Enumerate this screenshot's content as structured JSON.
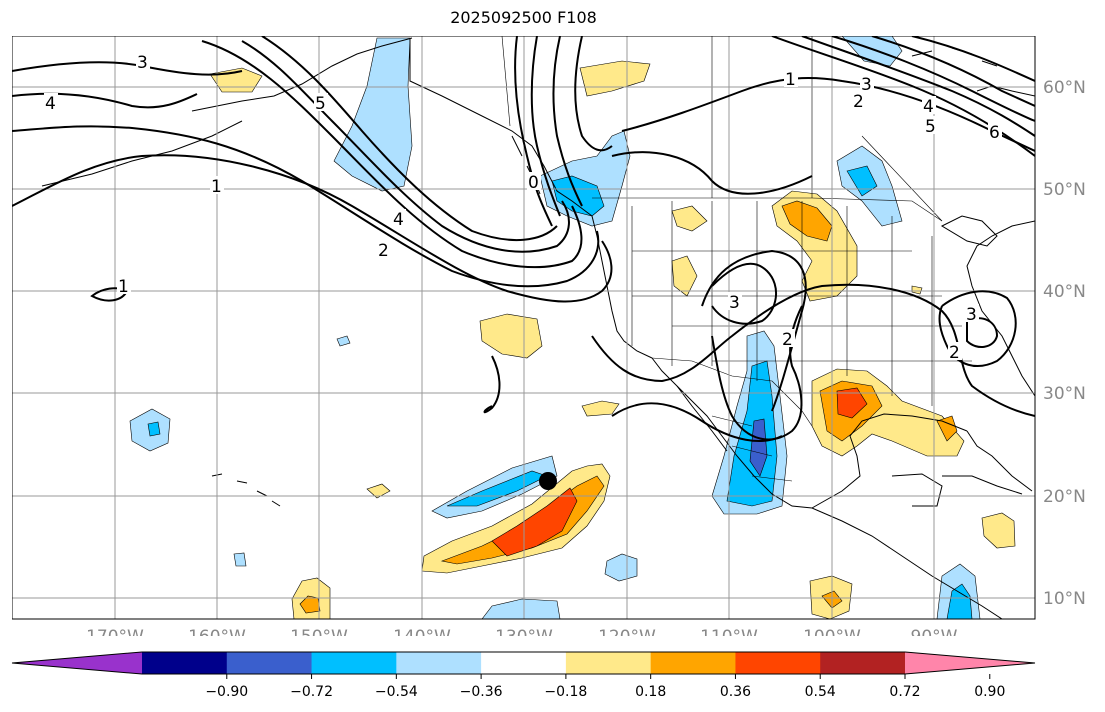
{
  "title": "2025092500 F108",
  "map": {
    "lon_labels": [
      "170°W",
      "160°W",
      "150°W",
      "140°W",
      "130°W",
      "120°W",
      "110°W",
      "100°W",
      "90°W"
    ],
    "lat_labels": [
      "60°N",
      "50°N",
      "40°N",
      "30°N",
      "20°N",
      "10°N"
    ],
    "contour_labels": [
      "3",
      "4",
      "5",
      "1",
      "4",
      "2",
      "0",
      "1",
      "2",
      "3",
      "4",
      "5",
      "6",
      "1",
      "3",
      "2",
      "3",
      "2"
    ],
    "gridline_color": "#999999",
    "label_color": "#888888"
  },
  "colorbar": {
    "ticks": [
      "−0.90",
      "−0.72",
      "−0.54",
      "−0.36",
      "−0.18",
      "0.18",
      "0.36",
      "0.54",
      "0.72",
      "0.90"
    ],
    "colors": [
      "#9932cc",
      "#00008b",
      "#3a5fcd",
      "#00bfff",
      "#aee0ff",
      "#ffffff",
      "#ffe98a",
      "#ffa500",
      "#ff4500",
      "#b22222",
      "#ff85aa"
    ]
  },
  "marker": {
    "lon": -128,
    "lat": 21.5
  }
}
